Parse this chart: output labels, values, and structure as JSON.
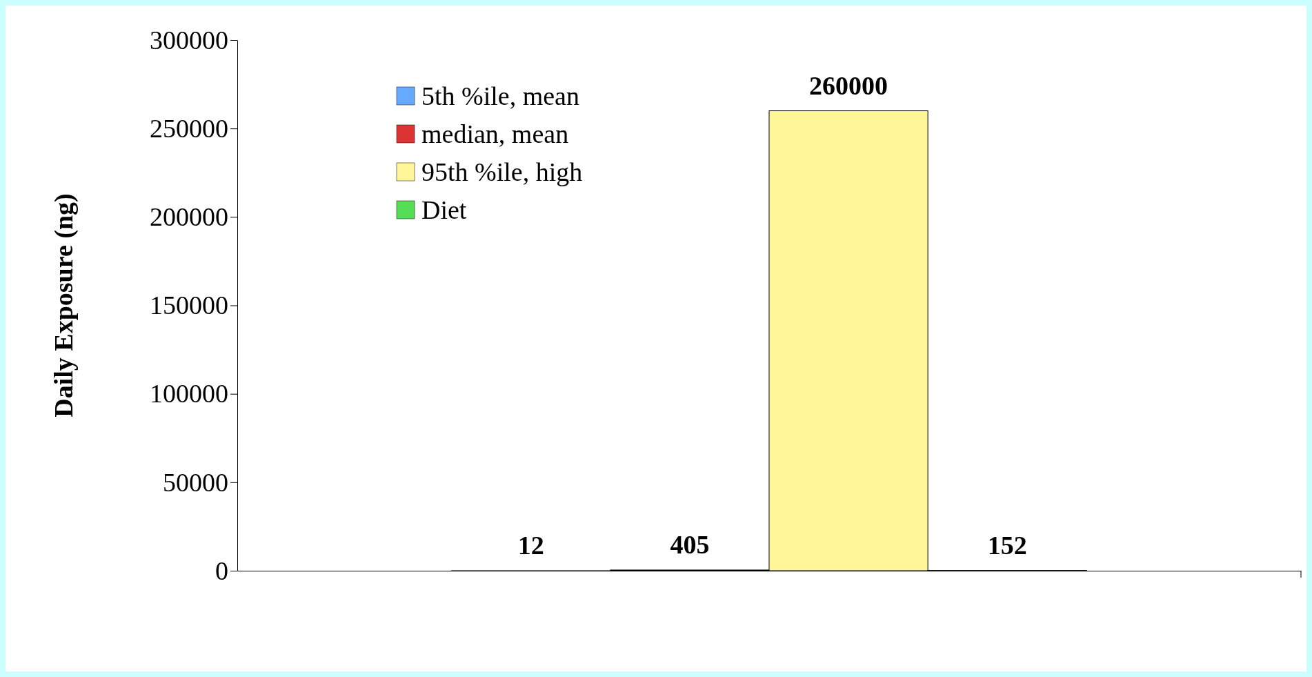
{
  "chart_data": {
    "type": "bar",
    "ylabel": "Daily Exposure (ng)",
    "categories": [
      null
    ],
    "series": [
      {
        "name": "5th %ile, mean",
        "color": "#66aaff",
        "values": [
          12
        ]
      },
      {
        "name": "median, mean",
        "color": "#dd3333",
        "values": [
          405
        ]
      },
      {
        "name": "95th %ile, high",
        "color": "#fff599",
        "values": [
          260000
        ]
      },
      {
        "name": "Diet",
        "color": "#55dd55",
        "values": [
          152
        ]
      }
    ],
    "ylim": [
      0,
      300000
    ],
    "yticks": [
      0,
      50000,
      100000,
      150000,
      200000,
      250000,
      300000
    ],
    "data_labels": true,
    "legend": "top left",
    "grid": false
  }
}
